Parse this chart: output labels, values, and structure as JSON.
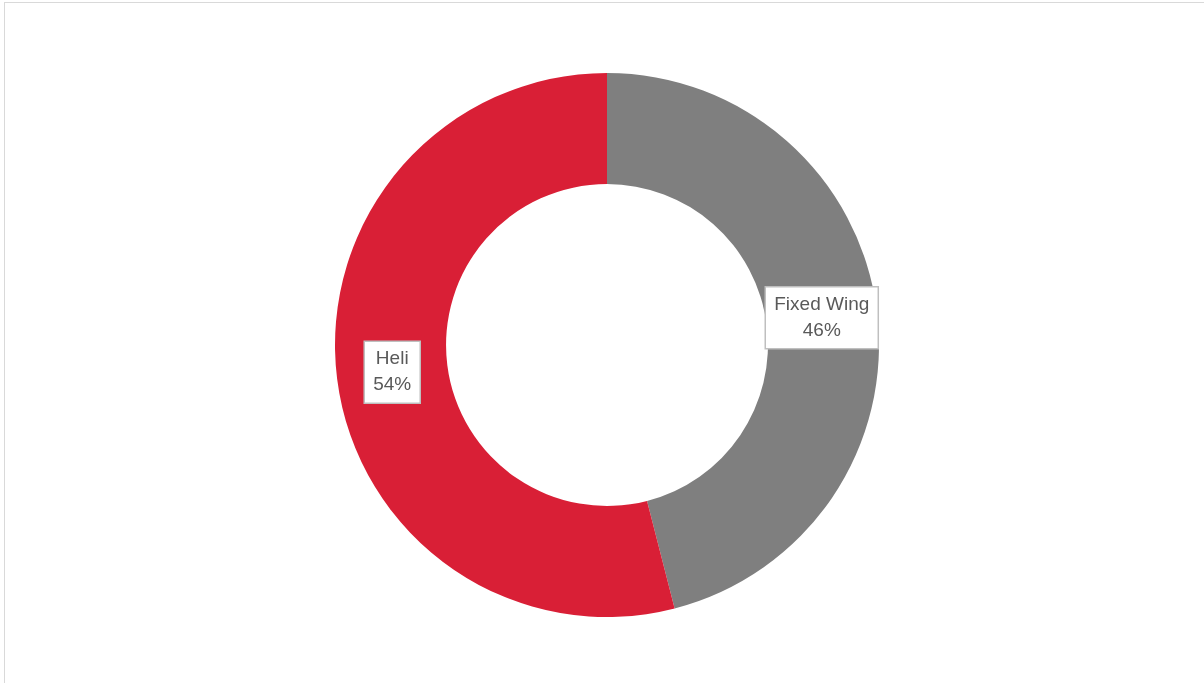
{
  "chart_data": {
    "type": "donut",
    "categories": [
      "Fixed Wing",
      "Heli"
    ],
    "values": [
      46,
      54
    ],
    "colors": [
      "#7f7f7f",
      "#d91f36"
    ],
    "value_labels": [
      "46%",
      "54%"
    ],
    "legend": false
  }
}
